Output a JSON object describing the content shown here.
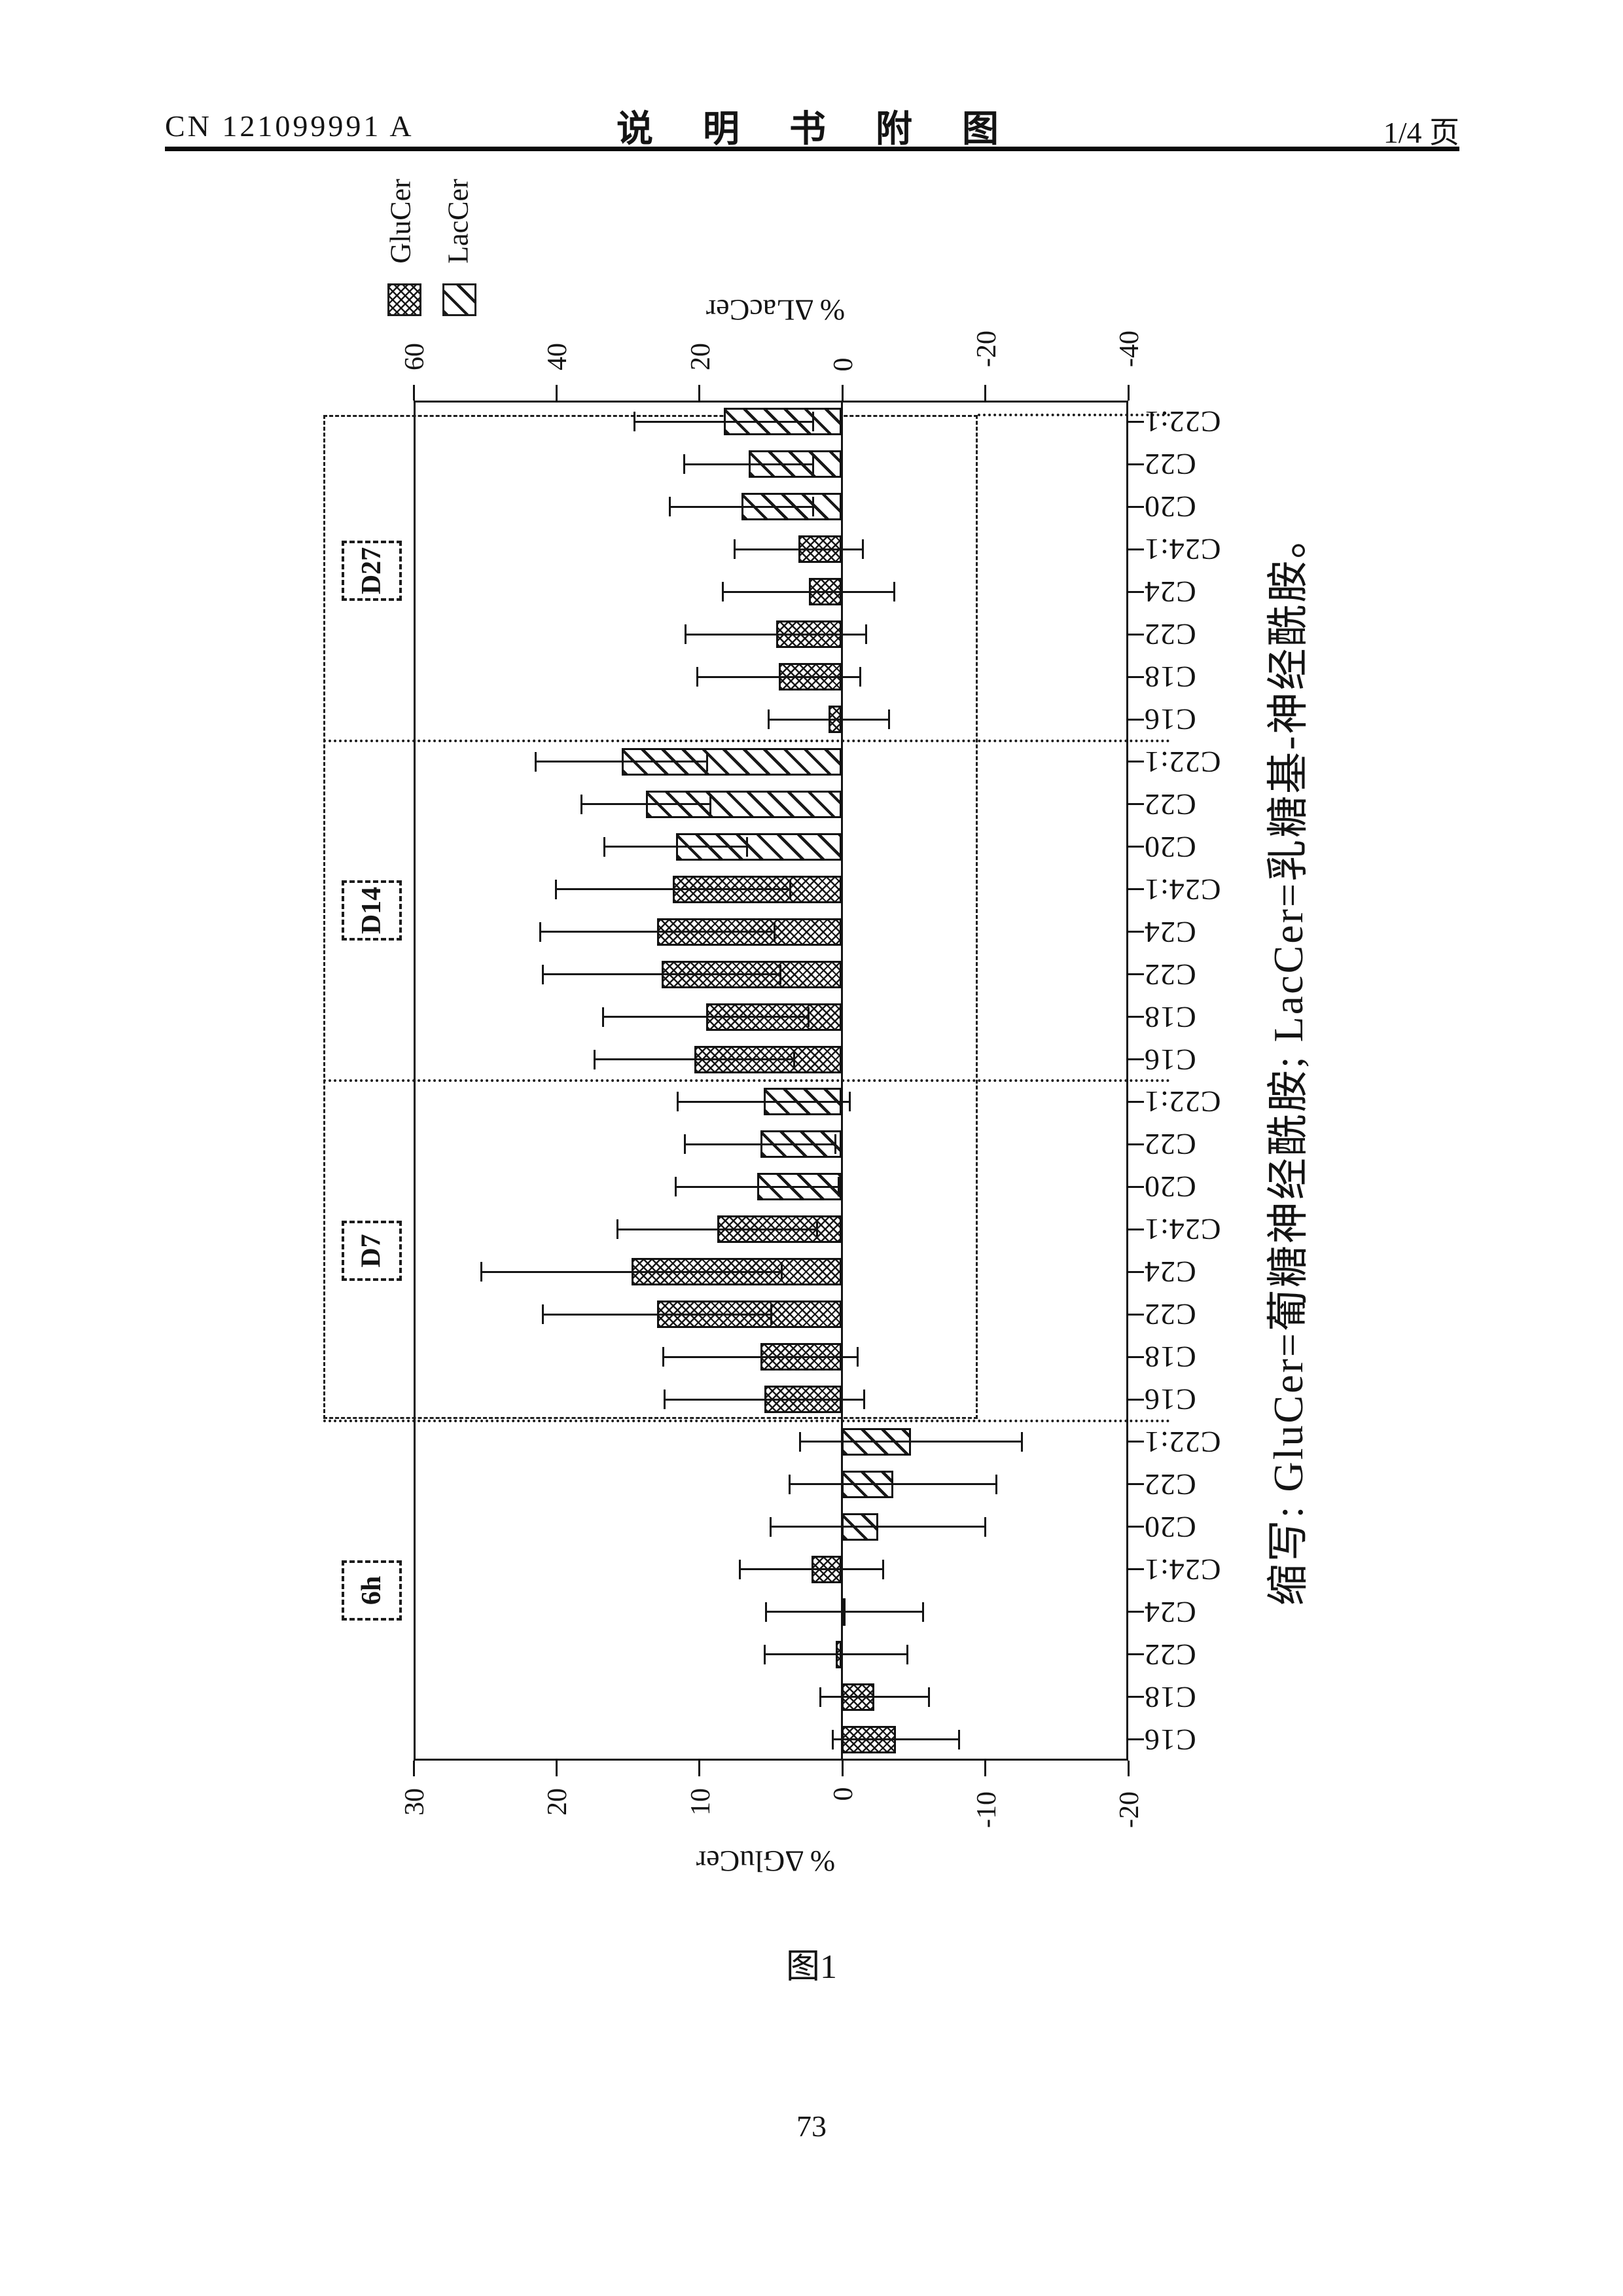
{
  "header": {
    "patent_number": "CN 121099991 A",
    "title": "说 明 书 附 图",
    "page_indicator": "1/4 页"
  },
  "figure_caption": "图1",
  "page_number": "73",
  "abbreviation_note": "缩写: GluCer=葡糖神经酰胺; LacCer=乳糖基-神经酰胺。",
  "chart_data": {
    "type": "bar",
    "note": "figure is printed rotated 90deg counter-clockwise on the page; positive bars point toward page-left",
    "left_axis": {
      "label": "% ΔGluCer",
      "ticks": [
        "30",
        "20",
        "10",
        "0",
        "-10",
        "-20"
      ],
      "range": [
        30,
        -20
      ]
    },
    "right_axis": {
      "label": "% ΔLacCer",
      "ticks": [
        "60",
        "40",
        "20",
        "0",
        "-20",
        "-40"
      ],
      "range": [
        60,
        -40
      ]
    },
    "legend": [
      {
        "name": "GluCer",
        "pattern": "crosshatch"
      },
      {
        "name": "LacCer",
        "pattern": "diagonal"
      }
    ],
    "grid": false,
    "groups": [
      {
        "label": "6h",
        "bars": [
          {
            "species": "C16",
            "series": "GluCer",
            "value": -3.8,
            "err": 4.4
          },
          {
            "species": "C18",
            "series": "GluCer",
            "value": -2.3,
            "err": 3.8
          },
          {
            "species": "C22",
            "series": "GluCer",
            "value": 0.4,
            "err": 5.0
          },
          {
            "species": "C24",
            "series": "GluCer",
            "value": -0.2,
            "err": 5.5
          },
          {
            "species": "C24:1",
            "series": "GluCer",
            "value": 2.1,
            "err": 5.0
          },
          {
            "species": "C20",
            "series": "LacCer",
            "value": -5.1,
            "err": 15.0
          },
          {
            "species": "C22",
            "series": "LacCer",
            "value": -7.2,
            "err": 14.5
          },
          {
            "species": "C22:1",
            "series": "LacCer",
            "value": -9.7,
            "err": 15.5
          }
        ]
      },
      {
        "label": "D7",
        "bars": [
          {
            "species": "C16",
            "series": "GluCer",
            "value": 5.4,
            "err": 7.0
          },
          {
            "species": "C18",
            "series": "GluCer",
            "value": 5.7,
            "err": 6.8
          },
          {
            "species": "C22",
            "series": "GluCer",
            "value": 12.9,
            "err": 8.0
          },
          {
            "species": "C24",
            "series": "GluCer",
            "value": 14.7,
            "err": 10.5
          },
          {
            "species": "C24:1",
            "series": "GluCer",
            "value": 8.7,
            "err": 7.0
          },
          {
            "species": "C20",
            "series": "LacCer",
            "value": 11.8,
            "err": 11.4
          },
          {
            "species": "C22",
            "series": "LacCer",
            "value": 11.4,
            "err": 10.5
          },
          {
            "species": "C22:1",
            "series": "LacCer",
            "value": 10.9,
            "err": 12.0
          }
        ]
      },
      {
        "label": "D14",
        "bars": [
          {
            "species": "C16",
            "series": "GluCer",
            "value": 10.3,
            "err": 7.0
          },
          {
            "species": "C18",
            "series": "GluCer",
            "value": 9.5,
            "err": 7.2
          },
          {
            "species": "C22",
            "series": "GluCer",
            "value": 12.6,
            "err": 8.3
          },
          {
            "species": "C24",
            "series": "GluCer",
            "value": 12.9,
            "err": 8.2
          },
          {
            "species": "C24:1",
            "series": "GluCer",
            "value": 11.8,
            "err": 8.2
          },
          {
            "species": "C20",
            "series": "LacCer",
            "value": 23.2,
            "err": 10.0
          },
          {
            "species": "C22",
            "series": "LacCer",
            "value": 27.4,
            "err": 9.0
          },
          {
            "species": "C22:1",
            "series": "LacCer",
            "value": 30.8,
            "err": 12.0
          }
        ]
      },
      {
        "label": "D27",
        "bars": [
          {
            "species": "C16",
            "series": "GluCer",
            "value": 0.9,
            "err": 4.2
          },
          {
            "species": "C18",
            "series": "GluCer",
            "value": 4.4,
            "err": 5.7
          },
          {
            "species": "C22",
            "series": "GluCer",
            "value": 4.6,
            "err": 6.3
          },
          {
            "species": "C24",
            "series": "GluCer",
            "value": 2.3,
            "err": 6.0
          },
          {
            "species": "C24:1",
            "series": "GluCer",
            "value": 3.0,
            "err": 4.5
          },
          {
            "species": "C20",
            "series": "LacCer",
            "value": 14.0,
            "err": 10.0
          },
          {
            "species": "C22",
            "series": "LacCer",
            "value": 13.0,
            "err": 9.0
          },
          {
            "species": "C22:1",
            "series": "LacCer",
            "value": 16.5,
            "err": 12.5
          }
        ]
      }
    ]
  }
}
